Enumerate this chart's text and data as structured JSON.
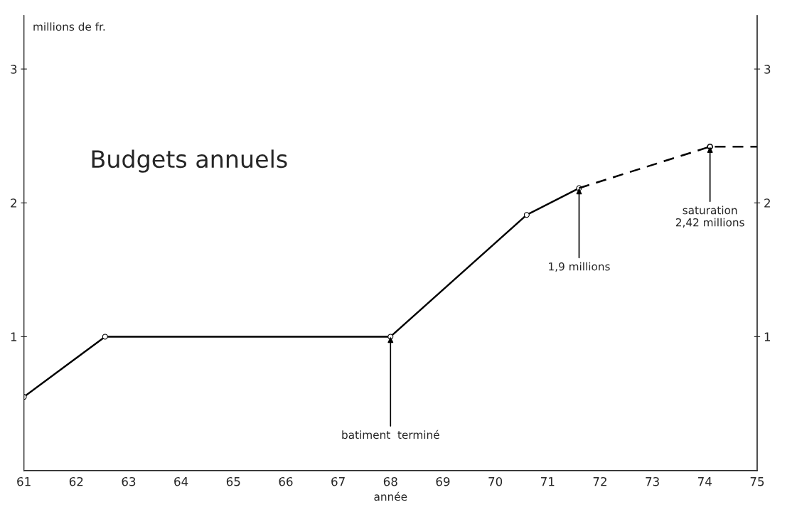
{
  "chart_data": {
    "type": "line",
    "title": "Budgets annuels",
    "xlabel": "année",
    "ylabel": "millions de fr.",
    "series": [
      {
        "color": "#000000",
        "x": [
          61,
          62.55,
          68,
          70.6,
          71.6
        ],
        "values": [
          0.55,
          1.0,
          1.0,
          1.91,
          2.11
        ],
        "marker": "circle",
        "line_style": "solid"
      },
      {
        "color": "#000000",
        "x": [
          71.6,
          74.1,
          75
        ],
        "values": [
          2.11,
          2.42,
          2.42
        ],
        "marker": "none",
        "line_style": "dashed"
      },
      {
        "type": "scatter",
        "color": "#000000",
        "x": [
          74.1
        ],
        "values": [
          2.42
        ],
        "marker": "circle"
      }
    ],
    "xlim": [
      61,
      75
    ],
    "xticks": [
      61,
      62,
      63,
      64,
      65,
      66,
      67,
      68,
      69,
      70,
      71,
      72,
      73,
      74,
      75
    ],
    "ylim": [
      0,
      3.4
    ],
    "yticks": [
      1,
      2,
      3
    ],
    "y2lim": [
      0,
      3.4
    ],
    "y2ticks": [
      1,
      2,
      3
    ],
    "grid": false,
    "legend": false,
    "annotations": [
      {
        "text": "batiment  terminé",
        "x": 68,
        "y": 1.0
      },
      {
        "text": "1,9 millions",
        "x": 71.6,
        "y": 2.11
      },
      {
        "text": "saturation\n2,42 millions",
        "x": 74.1,
        "y": 2.42
      }
    ]
  }
}
